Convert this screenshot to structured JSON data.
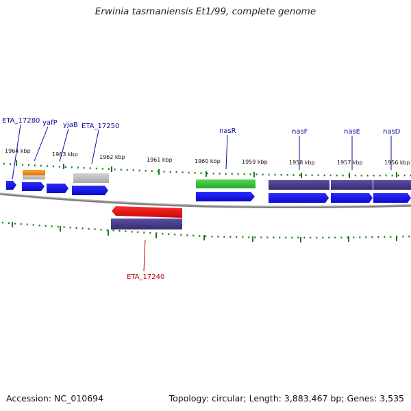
{
  "title": "Erwinia tasmaniensis Et1/99, complete genome",
  "footer": {
    "accession": "Accession: NC_010694",
    "summary": "Topology: circular; Length: 3,883,467 bp; Genes: 3,535"
  },
  "ticks": [
    "1964 kbp",
    "1963 kbp",
    "1962 kbp",
    "1961 kbp",
    "1960 kbp",
    "1959 kbp",
    "1958 kbp",
    "1957 kbp",
    "1956 kbp"
  ],
  "gene_labels": [
    {
      "name": "ETA_17280",
      "strand": "forward"
    },
    {
      "name": "yafP",
      "strand": "forward"
    },
    {
      "name": "yjaB",
      "strand": "forward"
    },
    {
      "name": "ETA_17250",
      "strand": "forward"
    },
    {
      "name": "nasR",
      "strand": "forward"
    },
    {
      "name": "nasF",
      "strand": "forward"
    },
    {
      "name": "nasE",
      "strand": "forward"
    },
    {
      "name": "nasD",
      "strand": "forward"
    },
    {
      "name": "ETA_17240",
      "strand": "reverse"
    }
  ],
  "colors": {
    "gene_blue": "#1010e8",
    "cds_purple": "#4a3f8c",
    "rrna_green": "#3ec43e",
    "orange": "#f09018",
    "grey": "#bdbdbd",
    "red": "#e01010",
    "tick_green": "#1a7a1a",
    "label_blue": "#0a0aa0",
    "label_red": "#c00000"
  }
}
